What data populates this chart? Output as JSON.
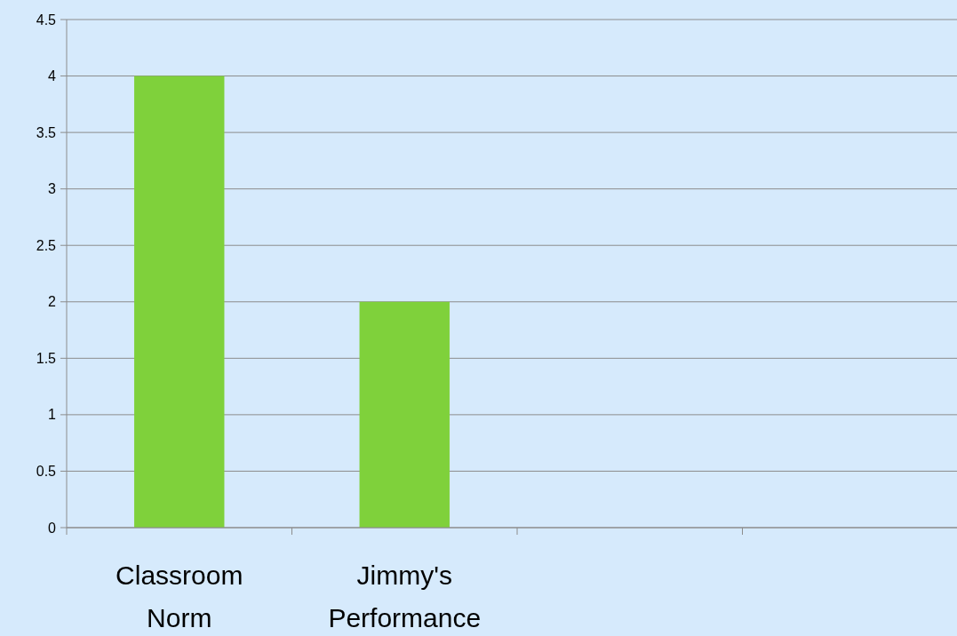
{
  "chart_data": {
    "type": "bar",
    "categories": [
      "Classroom Norm",
      "Jimmy's Performance",
      null,
      null
    ],
    "values": [
      4,
      2,
      null,
      null
    ],
    "color": "#7fd13b",
    "ylim": [
      0,
      4.5
    ],
    "yticks": [
      0,
      0.5,
      1,
      1.5,
      2,
      2.5,
      3,
      3.5,
      4,
      4.5
    ],
    "grid": "y"
  }
}
